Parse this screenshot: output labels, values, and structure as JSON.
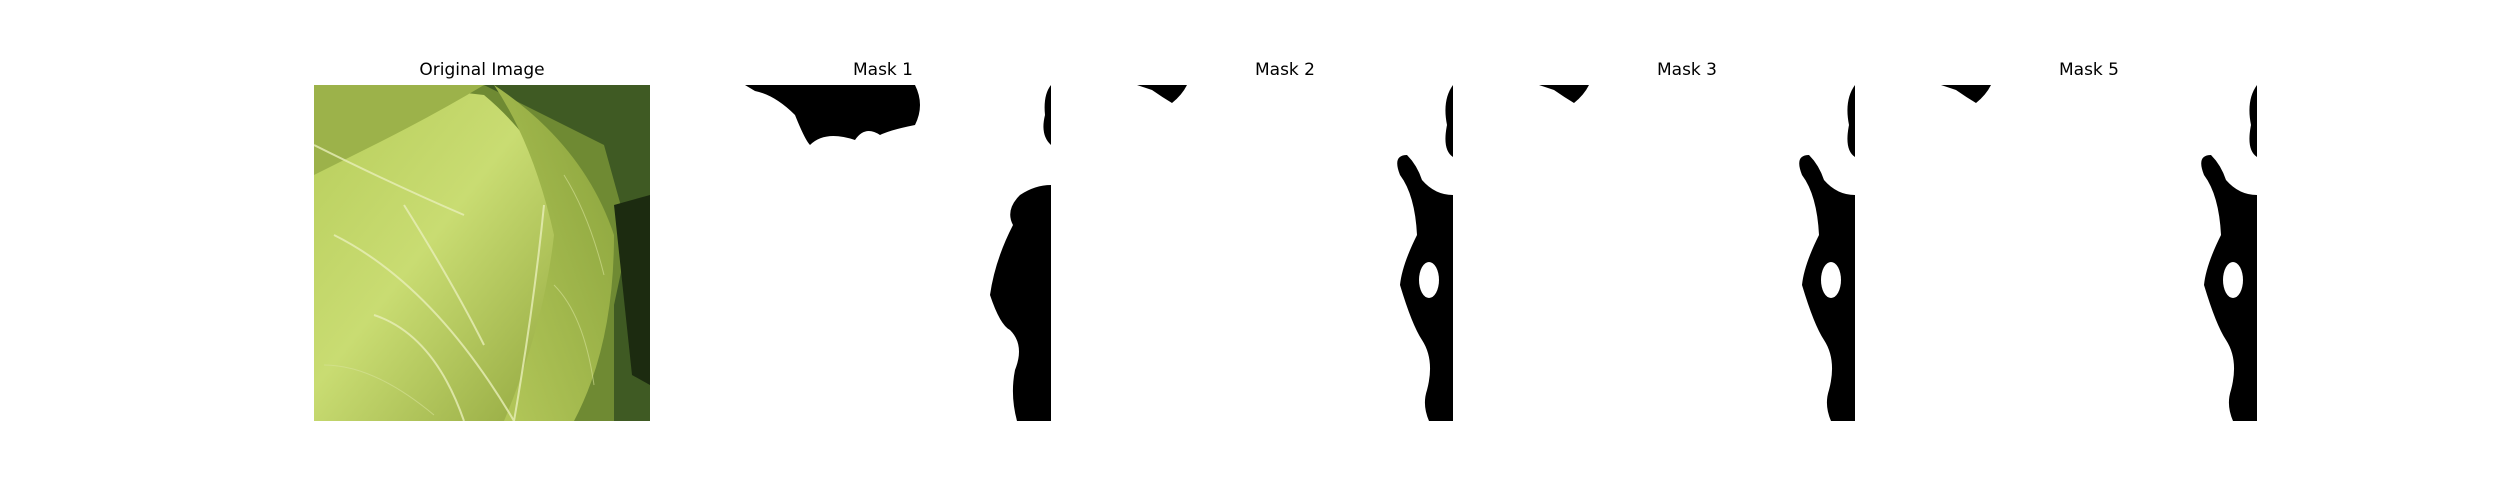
{
  "panels": [
    {
      "title": "Original Image",
      "kind": "photo",
      "subject": "cabbage leaf close-up"
    },
    {
      "title": "Mask 1",
      "kind": "mask"
    },
    {
      "title": "Mask 2",
      "kind": "mask"
    },
    {
      "title": "Mask 3",
      "kind": "mask"
    },
    {
      "title": "Mask 5",
      "kind": "mask"
    }
  ],
  "colors": {
    "background": "#ffffff",
    "mask_foreground": "#ffffff",
    "mask_background": "#000000",
    "leaf_light": "#c6d96a",
    "leaf_mid": "#a3b94a",
    "leaf_dark": "#5f7a2a",
    "shadow": "#1f2f12"
  }
}
